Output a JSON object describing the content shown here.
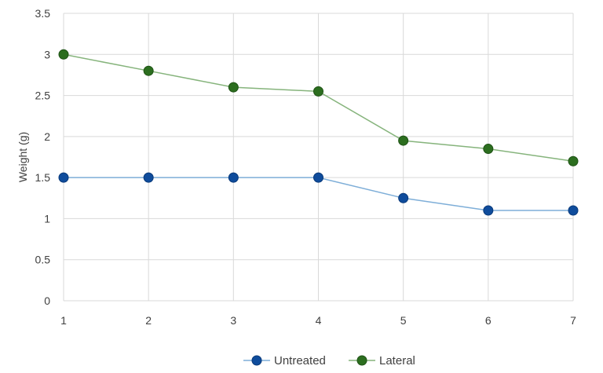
{
  "chart_data": {
    "type": "line",
    "title": "",
    "xlabel": "",
    "ylabel": "Weight (g)",
    "x": [
      1,
      2,
      3,
      4,
      5,
      6,
      7
    ],
    "x_tick_labels": [
      "1",
      "2",
      "3",
      "4",
      "5",
      "6",
      "7"
    ],
    "ylim": [
      0,
      3.5
    ],
    "y_tick_labels": [
      "0",
      "0.5",
      "1",
      "1.5",
      "2",
      "2.5",
      "3",
      "3.5"
    ],
    "y_ticks": [
      0,
      0.5,
      1,
      1.5,
      2,
      2.5,
      3,
      3.5
    ],
    "grid": "on",
    "legend_position": "bottom",
    "series": [
      {
        "name": "Untreated",
        "values": [
          1.5,
          1.5,
          1.5,
          1.5,
          1.25,
          1.1,
          1.1
        ],
        "line_color": "#7eaed8",
        "marker_color": "#0f4c9c",
        "marker_edge": "#0a3a7a"
      },
      {
        "name": "Lateral",
        "values": [
          3.0,
          2.8,
          2.6,
          2.55,
          1.95,
          1.85,
          1.7
        ],
        "line_color": "#86b47c",
        "marker_color": "#2c6e1f",
        "marker_edge": "#1e5215"
      }
    ],
    "gridline_color": "#d9d9d9"
  }
}
